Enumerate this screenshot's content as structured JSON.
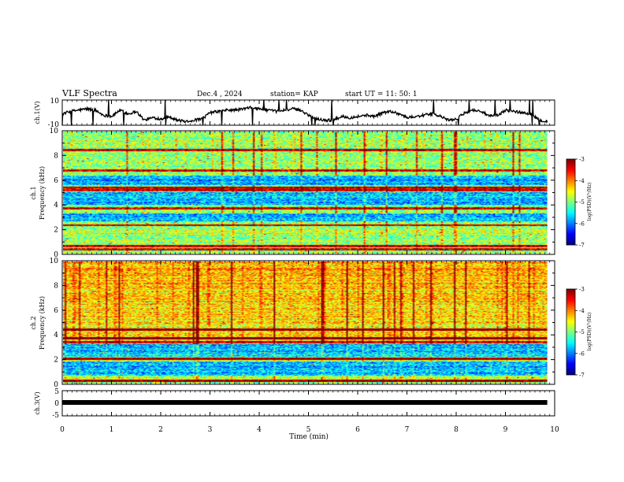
{
  "header": {
    "title": "VLF Spectra",
    "date": "Dec.4 , 2024",
    "station": "station= KAP",
    "start_ut": "start UT =   11: 50: 1"
  },
  "chart_data": [
    {
      "type": "line",
      "panel": "ch1-waveform",
      "ylabel": "ch.1(V)",
      "ylim": [
        -10,
        10
      ],
      "yticks": [
        "10",
        "-10"
      ],
      "x_range_min": [
        0,
        9.85
      ],
      "series": [
        {
          "values": [
            -1,
            1,
            2,
            3,
            2,
            -2,
            -3,
            2,
            -1,
            1,
            -6,
            -4,
            -5,
            -3,
            -6,
            -7,
            -6,
            -5,
            0,
            1,
            2,
            2,
            3,
            4,
            3,
            2,
            1,
            2,
            3,
            2,
            -2,
            -5,
            -6,
            -6,
            -3,
            -4,
            -3,
            -2,
            -3,
            0,
            1,
            -1,
            -4,
            -3,
            -2,
            -1,
            -3,
            -6,
            -5,
            0,
            2,
            1,
            -3,
            -2,
            2,
            1,
            0,
            -1,
            -6,
            -7
          ]
        }
      ],
      "color": "#000000"
    },
    {
      "type": "heatmap",
      "panel": "ch1-spectrogram",
      "label_line1": "ch.1",
      "label_line2": "Frequency (kHz)",
      "ylim": [
        0,
        10
      ],
      "yticks": [
        "0",
        "2",
        "4",
        "6",
        "8",
        "10"
      ],
      "colorbar": {
        "label": "log(PSD)(V²/Hz)",
        "range": [
          -7,
          -3
        ],
        "ticks": [
          "-3",
          "-4",
          "-5",
          "-6",
          "-7"
        ]
      },
      "strong_bands_khz": [
        0.3,
        0.6,
        2.3,
        3.7,
        5.2,
        5.4,
        6.8,
        8.5
      ],
      "quiet_bands_khz": [
        [
          2.6,
          3.3
        ],
        [
          4.0,
          5.0
        ],
        [
          5.6,
          6.4
        ]
      ]
    },
    {
      "type": "heatmap",
      "panel": "ch2-spectrogram",
      "label_line1": "ch.2",
      "label_line2": "Frequency (kHz)",
      "ylim": [
        0,
        10
      ],
      "yticks": [
        "0",
        "2",
        "4",
        "6",
        "8",
        "10"
      ],
      "colorbar": {
        "label": "log(PSD)(V²/Hz)",
        "range": [
          -7,
          -3
        ],
        "ticks": [
          "-3",
          "-4",
          "-5",
          "-6",
          "-7"
        ]
      },
      "strong_bands_khz": [
        0.2,
        2.0,
        3.4,
        3.7,
        4.4
      ],
      "quiet_bands_khz": [
        [
          2.2,
          3.2
        ],
        [
          0.6,
          1.8
        ]
      ]
    },
    {
      "type": "line",
      "panel": "ch3-waveform",
      "ylabel": "ch.3(V)",
      "ylim": [
        -5,
        5
      ],
      "yticks": [
        "5",
        "0",
        "-5"
      ],
      "series": [
        {
          "values": [
            0,
            0
          ]
        }
      ],
      "x_range_min": [
        0,
        9.85
      ]
    }
  ],
  "xaxis": {
    "label": "Time  (min)",
    "ticks": [
      "0",
      "1",
      "2",
      "3",
      "4",
      "5",
      "6",
      "7",
      "8",
      "9",
      "10"
    ],
    "range": [
      0,
      10
    ]
  }
}
